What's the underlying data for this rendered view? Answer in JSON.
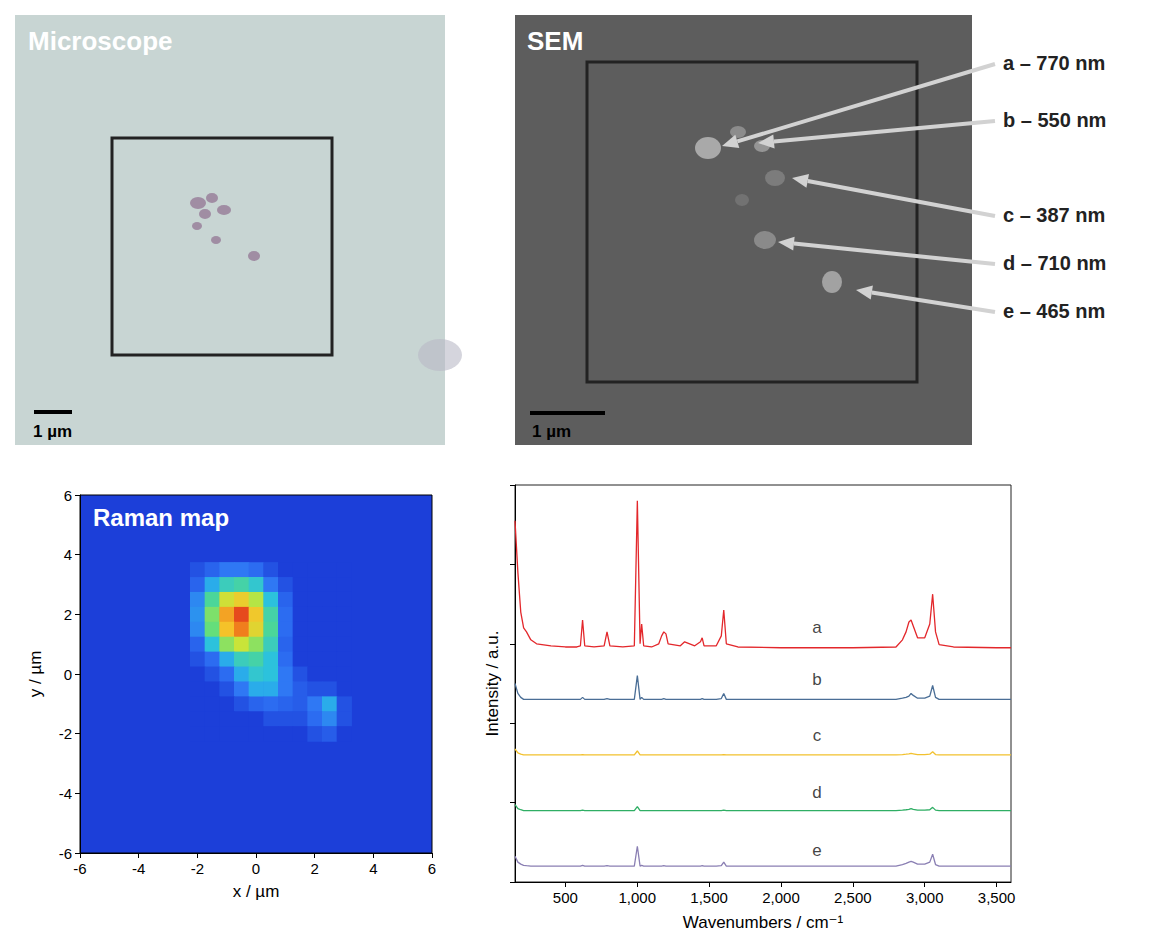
{
  "microscope": {
    "title": "Microscope",
    "scale_bar": "1 µm"
  },
  "sem": {
    "title": "SEM",
    "scale_bar": "1 µm",
    "particles": [
      "a – 770 nm",
      "b – 550 nm",
      "c – 387 nm",
      "d – 710 nm",
      "e – 465 nm"
    ]
  },
  "chart_data": [
    {
      "type": "heatmap",
      "title": "Raman map",
      "xlabel": "x / µm",
      "ylabel": "y / µm",
      "xlim": [
        -6,
        6
      ],
      "ylim": [
        -6,
        6
      ],
      "xticks": [
        -6,
        -4,
        -2,
        0,
        2,
        4,
        6
      ],
      "yticks": [
        -6,
        -4,
        -2,
        0,
        2,
        4,
        6
      ],
      "x": [
        -2,
        -1.5,
        -1,
        -0.5,
        0,
        0.5,
        1,
        1.5,
        2,
        2.5,
        3
      ],
      "y": [
        3.5,
        3,
        2.5,
        2,
        1.5,
        1,
        0.5,
        0,
        -0.5,
        -1,
        -1.5,
        -2
      ],
      "values": [
        [
          5,
          10,
          15,
          15,
          12,
          5,
          0,
          0,
          0,
          0,
          0
        ],
        [
          10,
          25,
          35,
          38,
          32,
          15,
          5,
          0,
          0,
          0,
          0
        ],
        [
          18,
          40,
          60,
          68,
          55,
          30,
          10,
          0,
          0,
          0,
          0
        ],
        [
          20,
          48,
          78,
          95,
          70,
          38,
          12,
          0,
          0,
          0,
          0
        ],
        [
          18,
          45,
          72,
          85,
          65,
          40,
          12,
          0,
          0,
          0,
          0
        ],
        [
          10,
          30,
          50,
          58,
          50,
          35,
          10,
          0,
          0,
          0,
          0
        ],
        [
          5,
          12,
          25,
          35,
          38,
          30,
          12,
          0,
          0,
          0,
          0
        ],
        [
          0,
          5,
          12,
          25,
          32,
          30,
          15,
          5,
          0,
          0,
          0
        ],
        [
          0,
          0,
          5,
          15,
          25,
          25,
          15,
          8,
          5,
          5,
          0
        ],
        [
          0,
          0,
          0,
          5,
          10,
          12,
          10,
          8,
          15,
          25,
          5
        ],
        [
          0,
          0,
          0,
          0,
          0,
          5,
          5,
          5,
          12,
          18,
          5
        ],
        [
          0,
          0,
          0,
          0,
          0,
          0,
          0,
          0,
          5,
          8,
          0
        ]
      ],
      "color_range": [
        0,
        100
      ]
    },
    {
      "type": "line",
      "xlabel": "Wavenumbers / cm⁻¹",
      "ylabel": "Intensity / a.u.",
      "xlim": [
        150,
        3600
      ],
      "ylim": [
        0,
        10
      ],
      "xticks": [
        500,
        1000,
        1500,
        2000,
        2500,
        3000,
        3500
      ],
      "yticks": [
        0,
        2,
        4,
        6,
        8,
        10
      ],
      "tick_labels": "x",
      "x": [
        150,
        170,
        190,
        210,
        230,
        260,
        300,
        400,
        500,
        580,
        605,
        620,
        635,
        700,
        770,
        790,
        810,
        900,
        980,
        1001,
        1020,
        1031,
        1045,
        1100,
        1150,
        1170,
        1185,
        1200,
        1215,
        1300,
        1330,
        1400,
        1440,
        1452,
        1465,
        1550,
        1585,
        1602,
        1620,
        1700,
        2000,
        2500,
        2800,
        2845,
        2870,
        2890,
        2905,
        2920,
        2950,
        3000,
        3035,
        3055,
        3075,
        3100,
        3200,
        3500,
        3600
      ],
      "series": [
        {
          "name": "a",
          "color": "#e3272b",
          "values": [
            9.1,
            7.8,
            6.8,
            6.4,
            6.3,
            6.1,
            6.0,
            5.95,
            5.92,
            5.92,
            5.95,
            6.6,
            5.95,
            5.92,
            5.95,
            6.3,
            5.95,
            5.92,
            5.95,
            9.6,
            6.0,
            6.5,
            5.95,
            5.92,
            6.0,
            6.2,
            6.3,
            6.25,
            6.0,
            5.95,
            6.05,
            5.95,
            6.05,
            6.15,
            5.95,
            5.95,
            6.2,
            6.85,
            6.0,
            5.92,
            5.9,
            5.9,
            5.92,
            6.1,
            6.3,
            6.55,
            6.6,
            6.45,
            6.15,
            6.15,
            6.5,
            7.25,
            6.3,
            5.98,
            5.92,
            5.9,
            5.9
          ]
        },
        {
          "name": "b",
          "color": "#4a6e96",
          "values": [
            5.0,
            4.75,
            4.65,
            4.6,
            4.6,
            4.6,
            4.6,
            4.6,
            4.6,
            4.6,
            4.6,
            4.65,
            4.6,
            4.6,
            4.6,
            4.62,
            4.6,
            4.6,
            4.6,
            5.2,
            4.6,
            4.65,
            4.6,
            4.6,
            4.6,
            4.6,
            4.62,
            4.6,
            4.6,
            4.6,
            4.6,
            4.6,
            4.6,
            4.62,
            4.6,
            4.6,
            4.62,
            4.75,
            4.6,
            4.6,
            4.6,
            4.6,
            4.6,
            4.63,
            4.65,
            4.68,
            4.75,
            4.7,
            4.63,
            4.63,
            4.68,
            4.95,
            4.65,
            4.6,
            4.6,
            4.6,
            4.6
          ]
        },
        {
          "name": "c",
          "color": "#f2c12e",
          "values": [
            3.35,
            3.25,
            3.22,
            3.2,
            3.2,
            3.2,
            3.2,
            3.2,
            3.2,
            3.2,
            3.2,
            3.21,
            3.2,
            3.2,
            3.2,
            3.2,
            3.2,
            3.2,
            3.2,
            3.3,
            3.2,
            3.2,
            3.2,
            3.2,
            3.2,
            3.2,
            3.2,
            3.2,
            3.2,
            3.2,
            3.2,
            3.2,
            3.2,
            3.2,
            3.2,
            3.2,
            3.2,
            3.21,
            3.2,
            3.2,
            3.2,
            3.2,
            3.2,
            3.21,
            3.22,
            3.23,
            3.24,
            3.23,
            3.21,
            3.21,
            3.22,
            3.28,
            3.21,
            3.2,
            3.2,
            3.2,
            3.2
          ]
        },
        {
          "name": "d",
          "color": "#2fae64",
          "values": [
            1.95,
            1.85,
            1.82,
            1.8,
            1.8,
            1.8,
            1.8,
            1.8,
            1.8,
            1.8,
            1.8,
            1.81,
            1.8,
            1.8,
            1.8,
            1.8,
            1.8,
            1.8,
            1.8,
            1.9,
            1.8,
            1.8,
            1.8,
            1.8,
            1.8,
            1.8,
            1.8,
            1.8,
            1.8,
            1.8,
            1.8,
            1.8,
            1.8,
            1.8,
            1.8,
            1.8,
            1.8,
            1.81,
            1.8,
            1.8,
            1.8,
            1.8,
            1.8,
            1.81,
            1.82,
            1.83,
            1.85,
            1.83,
            1.81,
            1.81,
            1.82,
            1.88,
            1.81,
            1.8,
            1.8,
            1.8,
            1.8
          ]
        },
        {
          "name": "e",
          "color": "#8a7fb3",
          "values": [
            0.65,
            0.5,
            0.45,
            0.42,
            0.41,
            0.4,
            0.4,
            0.4,
            0.4,
            0.4,
            0.4,
            0.42,
            0.4,
            0.4,
            0.4,
            0.41,
            0.4,
            0.4,
            0.4,
            0.9,
            0.4,
            0.42,
            0.4,
            0.4,
            0.4,
            0.4,
            0.41,
            0.4,
            0.4,
            0.4,
            0.4,
            0.4,
            0.4,
            0.41,
            0.4,
            0.4,
            0.41,
            0.5,
            0.4,
            0.4,
            0.4,
            0.4,
            0.4,
            0.44,
            0.47,
            0.5,
            0.52,
            0.5,
            0.45,
            0.45,
            0.5,
            0.7,
            0.44,
            0.4,
            0.4,
            0.4,
            0.4
          ]
        }
      ],
      "annotations": [
        {
          "text": "a",
          "x": 2250,
          "y": 6.4
        },
        {
          "text": "b",
          "x": 2250,
          "y": 5.1
        },
        {
          "text": "c",
          "x": 2250,
          "y": 3.7
        },
        {
          "text": "d",
          "x": 2250,
          "y": 2.25
        },
        {
          "text": "e",
          "x": 2250,
          "y": 0.8
        }
      ]
    }
  ]
}
